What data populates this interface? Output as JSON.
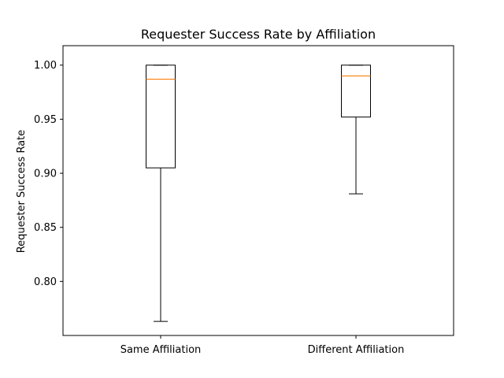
{
  "chart_data": {
    "type": "box",
    "title": "Requester Success Rate by Affiliation",
    "xlabel": "",
    "ylabel": "Requester Success Rate",
    "categories": [
      "Same Affiliation",
      "Different Affiliation"
    ],
    "boxes": [
      {
        "whisker_low": 0.763,
        "q1": 0.905,
        "median": 0.987,
        "q3": 1.0,
        "whisker_high": 1.0
      },
      {
        "whisker_low": 0.881,
        "q1": 0.952,
        "median": 0.99,
        "q3": 1.0,
        "whisker_high": 1.0
      }
    ],
    "ylim": [
      0.75,
      1.018
    ],
    "yticks": [
      0.8,
      0.85,
      0.9,
      0.95,
      1.0
    ],
    "ytick_labels": [
      "0.80",
      "0.85",
      "0.90",
      "0.95",
      "1.00"
    ],
    "grid": false,
    "legend": "none",
    "colors": {
      "box": "#000000",
      "median": "#ff7f0e",
      "axes": "#000000"
    }
  }
}
